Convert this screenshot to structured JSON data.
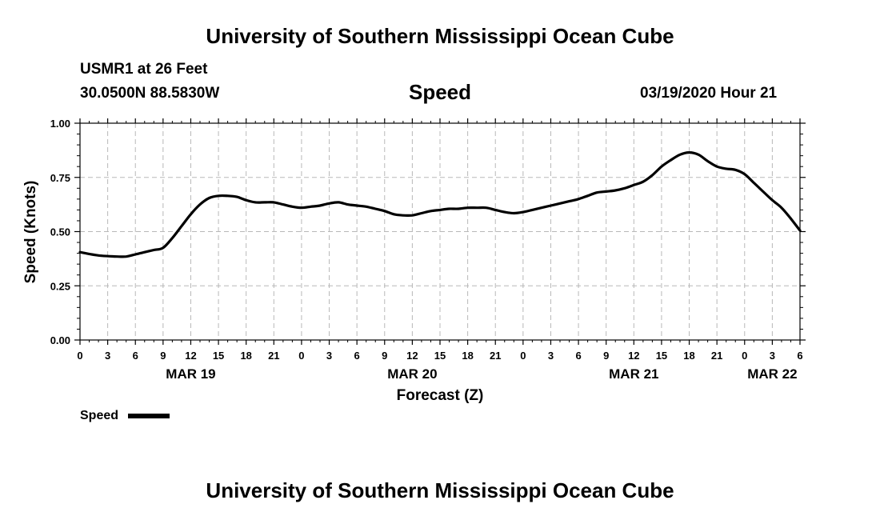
{
  "header": {
    "title": "University of Southern Mississippi Ocean Cube",
    "station": "USMR1 at 26 Feet",
    "coordinates": "30.0500N 88.5830W",
    "parameter": "Speed",
    "datetime": "03/19/2020 Hour 21"
  },
  "footer": {
    "title": "University of Southern Mississippi Ocean Cube"
  },
  "chart_data": {
    "type": "line",
    "title": "Speed",
    "xlabel": "Forecast (Z)",
    "ylabel": "Speed (Knots)",
    "ylim": [
      0,
      1
    ],
    "xlim": [
      0,
      78
    ],
    "y_ticks": [
      "0.00",
      "0.25",
      "0.50",
      "0.75",
      "1.00"
    ],
    "x_tick_labels": [
      "0",
      "3",
      "6",
      "9",
      "12",
      "15",
      "18",
      "21",
      "0",
      "3",
      "6",
      "9",
      "12",
      "15",
      "18",
      "21",
      "0",
      "3",
      "6",
      "9",
      "12",
      "15",
      "18",
      "21",
      "0",
      "3",
      "6"
    ],
    "date_labels": [
      {
        "label": "MAR 19",
        "hour": 12
      },
      {
        "label": "MAR 20",
        "hour": 36
      },
      {
        "label": "MAR 21",
        "hour": 60
      },
      {
        "label": "MAR 22",
        "hour": 75
      }
    ],
    "grid": true,
    "legend": {
      "position": "bottom-left",
      "entries": [
        "Speed"
      ]
    },
    "series": [
      {
        "name": "Speed",
        "color": "#000000",
        "x": [
          0,
          2,
          4,
          5,
          6,
          7,
          8,
          9,
          10,
          11,
          12,
          13,
          14,
          15,
          16,
          17,
          18,
          19,
          20,
          21,
          22,
          23,
          24,
          25,
          26,
          27,
          28,
          29,
          30,
          31,
          32,
          33,
          34,
          35,
          36,
          37,
          38,
          39,
          40,
          41,
          42,
          43,
          44,
          45,
          46,
          47,
          48,
          49,
          50,
          51,
          52,
          53,
          54,
          55,
          56,
          57,
          58,
          59,
          60,
          61,
          62,
          63,
          64,
          65,
          66,
          67,
          68,
          69,
          70,
          71,
          72,
          73,
          74,
          75,
          76,
          77,
          78
        ],
        "values": [
          0.405,
          0.39,
          0.385,
          0.385,
          0.395,
          0.405,
          0.415,
          0.425,
          0.47,
          0.525,
          0.58,
          0.625,
          0.655,
          0.665,
          0.665,
          0.66,
          0.645,
          0.635,
          0.635,
          0.635,
          0.625,
          0.615,
          0.61,
          0.615,
          0.62,
          0.63,
          0.635,
          0.625,
          0.62,
          0.615,
          0.605,
          0.595,
          0.58,
          0.575,
          0.575,
          0.585,
          0.595,
          0.6,
          0.605,
          0.605,
          0.61,
          0.61,
          0.61,
          0.6,
          0.59,
          0.585,
          0.59,
          0.6,
          0.61,
          0.62,
          0.63,
          0.64,
          0.65,
          0.665,
          0.68,
          0.685,
          0.69,
          0.7,
          0.715,
          0.73,
          0.76,
          0.8,
          0.83,
          0.855,
          0.865,
          0.855,
          0.825,
          0.8,
          0.79,
          0.785,
          0.765,
          0.725,
          0.685,
          0.645,
          0.61,
          0.56,
          0.505
        ]
      }
    ]
  }
}
